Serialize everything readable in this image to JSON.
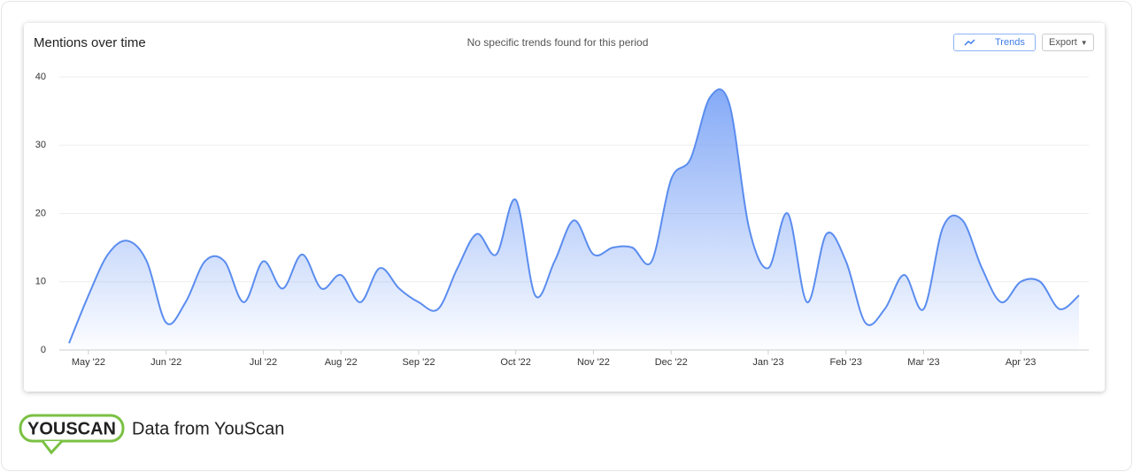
{
  "chart_data": {
    "type": "area",
    "title": "Mentions over time",
    "subtitle": "No specific trends found for this period",
    "categories": [
      null,
      "May '22",
      null,
      null,
      null,
      "Jun '22",
      null,
      null,
      null,
      null,
      "Jul '22",
      null,
      null,
      null,
      "Aug '22",
      null,
      null,
      null,
      "Sep '22",
      null,
      null,
      null,
      null,
      "Oct '22",
      null,
      null,
      null,
      "Nov '22",
      null,
      null,
      null,
      "Dec '22",
      null,
      null,
      null,
      null,
      "Jan '23",
      null,
      null,
      null,
      "Feb '23",
      null,
      null,
      null,
      "Mar '23",
      null,
      null,
      null,
      null,
      "Apr '23",
      null,
      null,
      null
    ],
    "values": [
      1,
      8,
      14,
      16,
      13,
      4,
      7,
      13,
      13,
      7,
      13,
      9,
      14,
      9,
      11,
      7,
      12,
      9,
      7,
      6,
      12,
      17,
      14,
      22,
      8,
      13,
      19,
      14,
      15,
      15,
      13,
      25,
      28,
      37,
      36,
      18,
      12,
      20,
      7,
      17,
      13,
      4,
      6,
      11,
      6,
      18,
      19,
      12,
      7,
      10,
      10,
      6,
      8
    ],
    "color": "#5b8def",
    "ylim": [
      0,
      40
    ],
    "yticks": [
      0,
      10,
      20,
      30,
      40
    ],
    "grid": true
  },
  "toolbar": {
    "trends": "Trends",
    "export": "Export"
  },
  "footer": {
    "logo": "YOUSCAN",
    "text": "Data from YouScan"
  }
}
